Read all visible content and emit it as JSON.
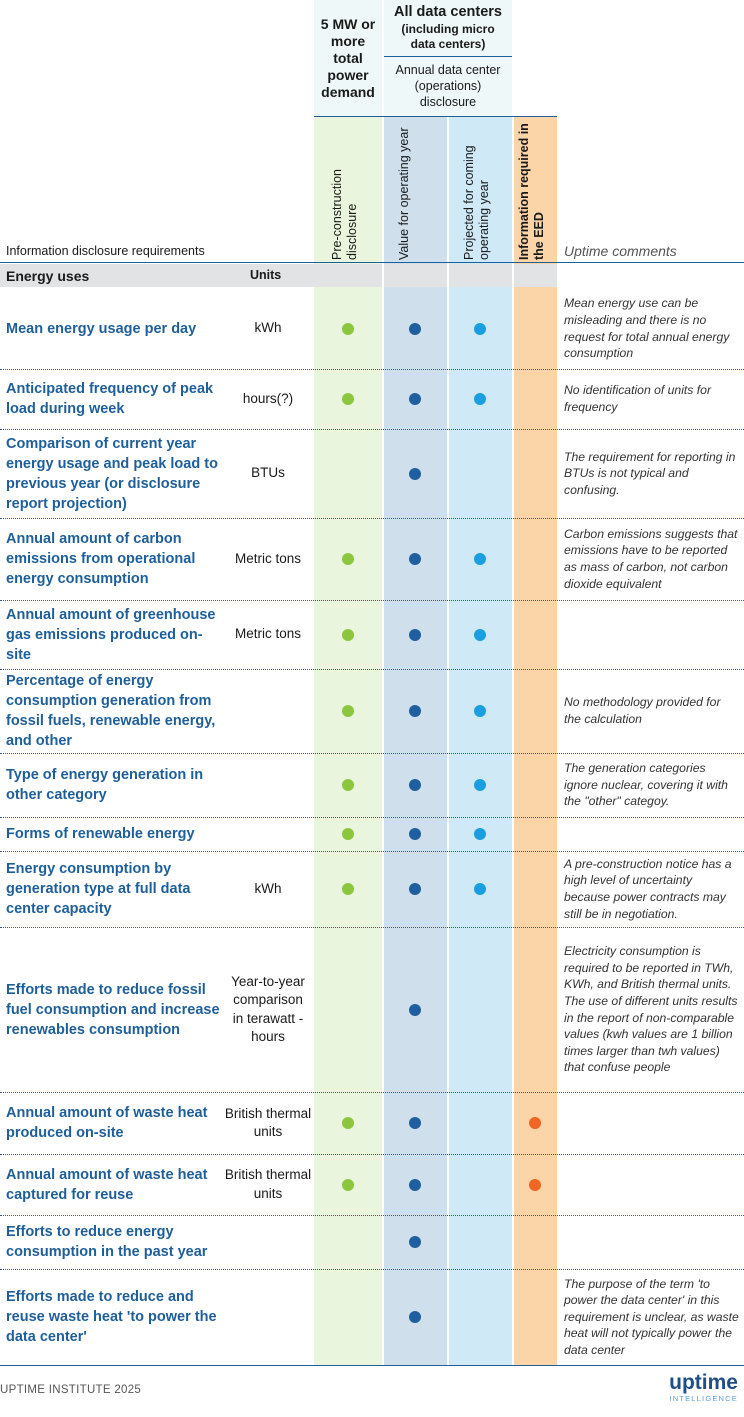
{
  "header": {
    "col_5mw": "5 MW or more total power demand",
    "all_dc_title": "All data centers",
    "all_dc_sub": "(including micro data centers)",
    "annual_disclosure": "Annual data center (operations) disclosure",
    "vlabels": {
      "pre_construction": "Pre-construction disclosure",
      "value_operating": "Value for operating year",
      "projected": "Projected for coming operating year",
      "eed": "Information required in the EED"
    },
    "info_requirements": "Information disclosure requirements",
    "uptime_comments": "Uptime comments"
  },
  "section": {
    "label": "Energy uses",
    "units_label": "Units"
  },
  "rows": [
    {
      "title": "Mean energy usage per day",
      "unit": "kWh",
      "pre": true,
      "value": true,
      "proj": true,
      "eed": false,
      "comment": "Mean energy use can be misleading and there is no request for total annual energy consumption"
    },
    {
      "title": "Anticipated frequency of peak load during week",
      "unit": "hours(?)",
      "pre": true,
      "value": true,
      "proj": true,
      "eed": false,
      "comment": "No identification of units for frequency"
    },
    {
      "title": "Comparison of current year energy usage and peak load to previous year (or disclosure report projection)",
      "unit": "BTUs",
      "pre": false,
      "value": true,
      "proj": false,
      "eed": false,
      "comment": "The requirement for reporting in BTUs is not typical and confusing."
    },
    {
      "title": "Annual amount of carbon emissions from operational energy consumption",
      "unit": "Metric tons",
      "pre": true,
      "value": true,
      "proj": true,
      "eed": false,
      "comment": "Carbon emissions suggests that emissions have to be reported as mass of carbon, not carbon dioxide equivalent"
    },
    {
      "title": "Annual amount of greenhouse gas emissions produced on-site",
      "unit": "Metric tons",
      "pre": true,
      "value": true,
      "proj": true,
      "eed": false,
      "comment": ""
    },
    {
      "title": "Percentage of energy consumption generation from fossil fuels, renewable energy, and other",
      "unit": "",
      "pre": true,
      "value": true,
      "proj": true,
      "eed": false,
      "comment": "No methodology provided for the calculation"
    },
    {
      "title": "Type of energy generation in other category",
      "unit": "",
      "pre": true,
      "value": true,
      "proj": true,
      "eed": false,
      "comment": "The generation categories ignore nuclear, covering it with the \"other\" categoy."
    },
    {
      "title": "Forms of renewable energy",
      "unit": "",
      "pre": true,
      "value": true,
      "proj": true,
      "eed": false,
      "comment": ""
    },
    {
      "title": "Energy consumption by generation type at full data center capacity",
      "unit": "kWh",
      "pre": true,
      "value": true,
      "proj": true,
      "eed": false,
      "comment": "A pre-construction notice has a high level of uncertainty because power contracts may still be in negotiation."
    },
    {
      "title": "Efforts made to reduce fossil fuel consumption and increase renewables consumption",
      "unit": "Year-to-year comparison in terawatt -hours",
      "pre": false,
      "value": true,
      "proj": false,
      "eed": false,
      "comment": "Electricity consumption is required to be reported in TWh, KWh, and British thermal units. The use of different units results in the report of non-comparable values (kwh values are 1 billion times larger than twh values) that confuse people"
    },
    {
      "title": "Annual amount of waste heat produced on-site",
      "unit": "British thermal units",
      "pre": true,
      "value": true,
      "proj": false,
      "eed": true,
      "comment": ""
    },
    {
      "title": "Annual amount of waste heat captured for reuse",
      "unit": "British thermal units",
      "pre": true,
      "value": true,
      "proj": false,
      "eed": true,
      "comment": ""
    },
    {
      "title": "Efforts to reduce energy consumption in the past year",
      "unit": "",
      "pre": false,
      "value": true,
      "proj": false,
      "eed": false,
      "comment": ""
    },
    {
      "title": "Efforts made to reduce and reuse waste heat 'to power the data center'",
      "unit": "",
      "pre": false,
      "value": true,
      "proj": false,
      "eed": false,
      "comment": "The purpose of the term 'to power the data center' in this requirement is unclear, as waste heat will not typically power the data center"
    }
  ],
  "colors": {
    "pre": "#8cc63f",
    "value": "#1f5fa0",
    "proj": "#1a9ee0",
    "eed": "#f26522",
    "pre_bg": "#e9f5dc",
    "value_bg": "#cfe0ec",
    "proj_bg": "#cfe9f7",
    "eed_bg": "#fbd4a8"
  },
  "footer": {
    "source": "UPTIME INSTITUTE 2025",
    "logo_word": "uptime",
    "logo_sub": "INTELLIGENCE"
  }
}
